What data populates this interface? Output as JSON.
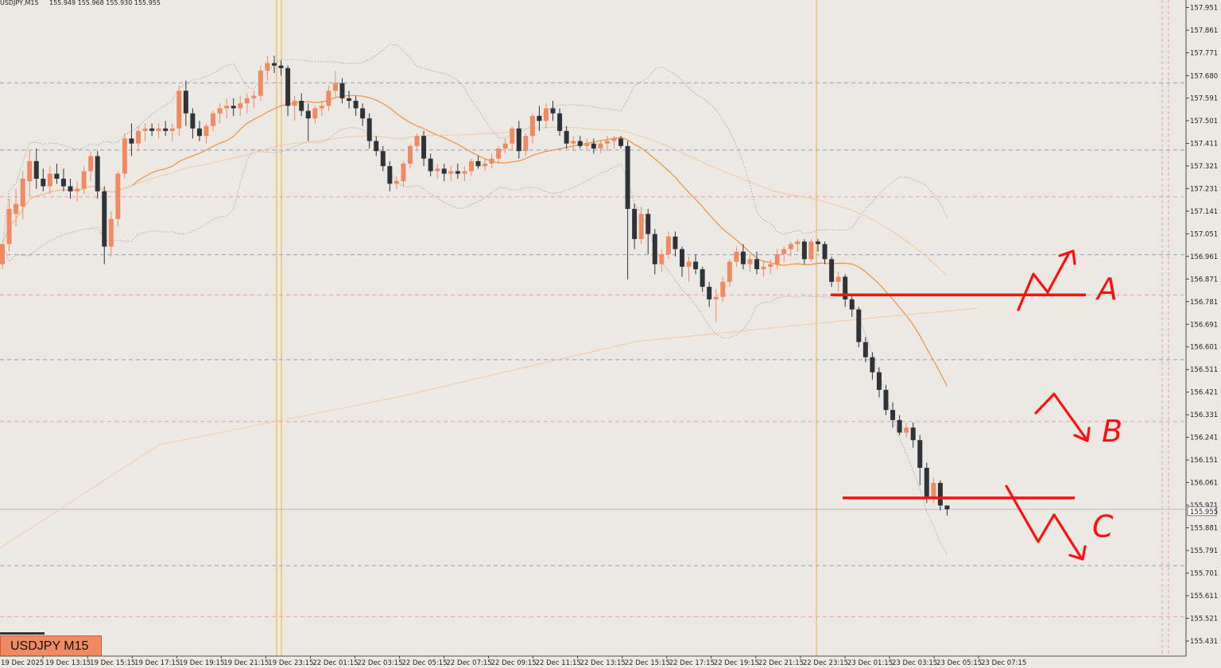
{
  "header": {
    "symbol": "USDJPY,M15",
    "ohlc": "155.949 155.968 155.930 155.955"
  },
  "badge": {
    "label": "USDJPY M15"
  },
  "price_tag": {
    "value": "155.955"
  },
  "colors": {
    "background": "#ece9e4",
    "bull": "#ef8a62",
    "bear": "#2f3338",
    "ma": "#f0913f",
    "annotation": "#ff1010"
  },
  "annotations": {
    "A": "A",
    "B": "B",
    "C": "C"
  },
  "chart_data": {
    "type": "candlestick",
    "symbol": "USDJPY",
    "timeframe": "M15",
    "ylim": [
      155.371,
      157.981
    ],
    "y_ticks": [
      "157.951",
      "157.861",
      "157.771",
      "157.680",
      "157.591",
      "157.501",
      "157.411",
      "157.321",
      "157.231",
      "157.141",
      "157.051",
      "156.961",
      "156.871",
      "156.781",
      "156.691",
      "156.601",
      "156.511",
      "156.421",
      "156.331",
      "156.241",
      "156.151",
      "156.061",
      "155.971",
      "155.881",
      "155.791",
      "155.701",
      "155.611",
      "155.521",
      "155.431"
    ],
    "x_ticks": [
      "19 Dec 2025",
      "19 Dec 13:15",
      "19 Dec 15:15",
      "19 Dec 17:15",
      "19 Dec 19:15",
      "19 Dec 21:15",
      "19 Dec 23:15",
      "22 Dec 01:15",
      "22 Dec 03:15",
      "22 Dec 05:15",
      "22 Dec 07:15",
      "22 Dec 09:15",
      "22 Dec 11:15",
      "22 Dec 13:15",
      "22 Dec 15:15",
      "22 Dec 17:15",
      "22 Dec 19:15",
      "22 Dec 21:15",
      "22 Dec 23:15",
      "23 Dec 01:15",
      "23 Dec 03:15",
      "23 Dec 05:15",
      "23 Dec 07:15"
    ],
    "last_price": 155.955,
    "horizontal_levels": [
      {
        "value": 157.651,
        "style": "dashed-blue"
      },
      {
        "value": 157.384,
        "style": "dashed-blue"
      },
      {
        "value": 157.198,
        "style": "dashed-pink"
      },
      {
        "value": 156.968,
        "style": "dashed-blue"
      },
      {
        "value": 156.808,
        "style": "dashed-pink"
      },
      {
        "value": 156.55,
        "style": "dashed-blue"
      },
      {
        "value": 156.304,
        "style": "dashed-pink"
      },
      {
        "value": 155.731,
        "style": "dashed-blue"
      },
      {
        "value": 155.528,
        "style": "dashed-pink"
      }
    ],
    "vertical_markers": [
      "19 Dec 23:15",
      "22 Dec 23:15"
    ],
    "drawn_levels": [
      {
        "label": "A",
        "value": 156.808
      },
      {
        "label": "C",
        "value": 156.0
      }
    ],
    "candles": [
      [
        156.93,
        157.01,
        156.91,
        157.01
      ],
      [
        157.01,
        157.19,
        156.98,
        157.15
      ],
      [
        157.13,
        157.23,
        157.08,
        157.17
      ],
      [
        157.16,
        157.3,
        157.11,
        157.27
      ],
      [
        157.26,
        157.38,
        157.2,
        157.34
      ],
      [
        157.34,
        157.39,
        157.23,
        157.27
      ],
      [
        157.27,
        157.31,
        157.22,
        157.24
      ],
      [
        157.24,
        157.32,
        157.21,
        157.29
      ],
      [
        157.29,
        157.33,
        157.25,
        157.27
      ],
      [
        157.27,
        157.31,
        157.22,
        157.24
      ],
      [
        157.24,
        157.27,
        157.19,
        157.22
      ],
      [
        157.22,
        157.26,
        157.18,
        157.23
      ],
      [
        157.23,
        157.32,
        157.21,
        157.3
      ],
      [
        157.3,
        157.38,
        157.26,
        157.36
      ],
      [
        157.36,
        157.38,
        157.19,
        157.22
      ],
      [
        157.22,
        157.24,
        156.93,
        157.0
      ],
      [
        157.0,
        157.14,
        156.96,
        157.11
      ],
      [
        157.11,
        157.3,
        157.08,
        157.29
      ],
      [
        157.29,
        157.45,
        157.27,
        157.43
      ],
      [
        157.43,
        157.49,
        157.36,
        157.41
      ],
      [
        157.41,
        157.48,
        157.38,
        157.46
      ],
      [
        157.46,
        157.49,
        157.42,
        157.47
      ],
      [
        157.47,
        157.49,
        157.44,
        157.46
      ],
      [
        157.46,
        157.49,
        157.43,
        157.47
      ],
      [
        157.47,
        157.5,
        157.44,
        157.46
      ],
      [
        157.46,
        157.49,
        157.42,
        157.47
      ],
      [
        157.47,
        157.64,
        157.44,
        157.62
      ],
      [
        157.62,
        157.66,
        157.48,
        157.53
      ],
      [
        157.53,
        157.55,
        157.43,
        157.47
      ],
      [
        157.47,
        157.5,
        157.42,
        157.44
      ],
      [
        157.44,
        157.49,
        157.41,
        157.48
      ],
      [
        157.48,
        157.54,
        157.46,
        157.53
      ],
      [
        157.53,
        157.57,
        157.49,
        157.55
      ],
      [
        157.55,
        157.59,
        157.51,
        157.56
      ],
      [
        157.56,
        157.59,
        157.52,
        157.55
      ],
      [
        157.55,
        157.6,
        157.52,
        157.57
      ],
      [
        157.57,
        157.61,
        157.53,
        157.59
      ],
      [
        157.59,
        157.62,
        157.55,
        157.6
      ],
      [
        157.6,
        157.72,
        157.58,
        157.7
      ],
      [
        157.7,
        157.76,
        157.66,
        157.73
      ],
      [
        157.73,
        157.76,
        157.69,
        157.72
      ],
      [
        157.72,
        157.74,
        157.68,
        157.71
      ],
      [
        157.71,
        157.72,
        157.52,
        157.56
      ],
      [
        157.56,
        157.6,
        157.5,
        157.58
      ],
      [
        157.58,
        157.61,
        157.52,
        157.54
      ],
      [
        157.54,
        157.57,
        157.42,
        157.51
      ],
      [
        157.51,
        157.56,
        157.49,
        157.55
      ],
      [
        157.55,
        157.58,
        157.52,
        157.56
      ],
      [
        157.56,
        157.64,
        157.54,
        157.62
      ],
      [
        157.62,
        157.7,
        157.59,
        157.65
      ],
      [
        157.65,
        157.67,
        157.57,
        157.59
      ],
      [
        157.59,
        157.62,
        157.55,
        157.58
      ],
      [
        157.58,
        157.6,
        157.52,
        157.55
      ],
      [
        157.55,
        157.57,
        157.48,
        157.51
      ],
      [
        157.51,
        157.53,
        157.39,
        157.42
      ],
      [
        157.42,
        157.44,
        157.36,
        157.38
      ],
      [
        157.38,
        157.4,
        157.3,
        157.32
      ],
      [
        157.32,
        157.34,
        157.22,
        157.25
      ],
      [
        157.25,
        157.28,
        157.23,
        157.26
      ],
      [
        157.26,
        157.34,
        157.24,
        157.33
      ],
      [
        157.33,
        157.41,
        157.31,
        157.4
      ],
      [
        157.4,
        157.45,
        157.38,
        157.44
      ],
      [
        157.44,
        157.46,
        157.32,
        157.35
      ],
      [
        157.35,
        157.37,
        157.28,
        157.3
      ],
      [
        157.3,
        157.33,
        157.27,
        157.31
      ],
      [
        157.31,
        157.33,
        157.26,
        157.29
      ],
      [
        157.29,
        157.32,
        157.26,
        157.3
      ],
      [
        157.3,
        157.33,
        157.27,
        157.29
      ],
      [
        157.29,
        157.32,
        157.26,
        157.3
      ],
      [
        157.3,
        157.35,
        157.28,
        157.34
      ],
      [
        157.34,
        157.36,
        157.31,
        157.32
      ],
      [
        157.32,
        157.35,
        157.3,
        157.33
      ],
      [
        157.33,
        157.37,
        157.31,
        157.35
      ],
      [
        157.35,
        157.4,
        157.33,
        157.39
      ],
      [
        157.39,
        157.43,
        157.37,
        157.41
      ],
      [
        157.41,
        157.48,
        157.38,
        157.47
      ],
      [
        157.47,
        157.5,
        157.35,
        157.38
      ],
      [
        157.38,
        157.45,
        157.36,
        157.44
      ],
      [
        157.44,
        157.53,
        157.41,
        157.52
      ],
      [
        157.52,
        157.56,
        157.46,
        157.5
      ],
      [
        157.5,
        157.57,
        157.47,
        157.55
      ],
      [
        157.55,
        157.58,
        157.5,
        157.53
      ],
      [
        157.53,
        157.55,
        157.44,
        157.46
      ],
      [
        157.46,
        157.48,
        157.39,
        157.41
      ],
      [
        157.41,
        157.44,
        157.38,
        157.42
      ],
      [
        157.42,
        157.44,
        157.39,
        157.4
      ],
      [
        157.4,
        157.43,
        157.38,
        157.41
      ],
      [
        157.41,
        157.43,
        157.37,
        157.39
      ],
      [
        157.39,
        157.42,
        157.37,
        157.41
      ],
      [
        157.41,
        157.44,
        157.38,
        157.42
      ],
      [
        157.42,
        157.44,
        157.39,
        157.43
      ],
      [
        157.43,
        157.44,
        157.39,
        157.4
      ],
      [
        157.4,
        157.42,
        156.87,
        157.15
      ],
      [
        157.15,
        157.17,
        156.99,
        157.03
      ],
      [
        157.03,
        157.16,
        157.01,
        157.13
      ],
      [
        157.13,
        157.15,
        156.97,
        157.05
      ],
      [
        157.05,
        157.07,
        156.89,
        156.93
      ],
      [
        156.93,
        156.99,
        156.9,
        156.97
      ],
      [
        156.97,
        157.06,
        156.95,
        157.04
      ],
      [
        157.04,
        157.06,
        156.96,
        156.99
      ],
      [
        156.99,
        157.0,
        156.88,
        156.92
      ],
      [
        156.92,
        156.96,
        156.86,
        156.94
      ],
      [
        156.94,
        156.97,
        156.89,
        156.91
      ],
      [
        156.91,
        156.92,
        156.82,
        156.84
      ],
      [
        156.84,
        156.86,
        156.76,
        156.79
      ],
      [
        156.79,
        156.83,
        156.7,
        156.8
      ],
      [
        156.8,
        156.88,
        156.78,
        156.86
      ],
      [
        156.86,
        156.95,
        156.84,
        156.94
      ],
      [
        156.94,
        157.0,
        156.92,
        156.98
      ],
      [
        156.98,
        157.01,
        156.91,
        156.93
      ],
      [
        156.93,
        156.97,
        156.9,
        156.95
      ],
      [
        156.95,
        156.98,
        156.89,
        156.91
      ],
      [
        156.91,
        156.94,
        156.88,
        156.92
      ],
      [
        156.92,
        156.95,
        156.89,
        156.93
      ],
      [
        156.93,
        156.99,
        156.91,
        156.97
      ],
      [
        156.97,
        157.0,
        156.94,
        156.99
      ],
      [
        156.99,
        157.02,
        156.96,
        157.01
      ],
      [
        157.01,
        157.03,
        156.98,
        157.02
      ],
      [
        157.02,
        157.03,
        156.93,
        156.95
      ],
      [
        156.95,
        157.03,
        156.94,
        157.02
      ],
      [
        157.02,
        157.03,
        156.98,
        157.01
      ],
      [
        157.01,
        157.02,
        156.93,
        156.95
      ],
      [
        156.95,
        156.96,
        156.84,
        156.86
      ],
      [
        156.86,
        156.9,
        156.82,
        156.88
      ],
      [
        156.88,
        156.89,
        156.76,
        156.79
      ],
      [
        156.79,
        156.81,
        156.72,
        156.75
      ],
      [
        156.75,
        156.76,
        156.6,
        156.62
      ],
      [
        156.62,
        156.64,
        156.54,
        156.56
      ],
      [
        156.56,
        156.58,
        156.47,
        156.5
      ],
      [
        156.5,
        156.52,
        156.4,
        156.43
      ],
      [
        156.43,
        156.45,
        156.33,
        156.35
      ],
      [
        156.35,
        156.38,
        156.28,
        156.31
      ],
      [
        156.31,
        156.33,
        156.25,
        156.26
      ],
      [
        156.26,
        156.3,
        156.24,
        156.28
      ],
      [
        156.28,
        156.3,
        156.2,
        156.23
      ],
      [
        156.23,
        156.25,
        156.05,
        156.12
      ],
      [
        156.12,
        156.14,
        155.98,
        156.0
      ],
      [
        156.0,
        156.08,
        155.98,
        156.06
      ],
      [
        156.06,
        156.07,
        155.95,
        155.97
      ],
      [
        155.97,
        155.97,
        155.93,
        155.955
      ]
    ]
  }
}
